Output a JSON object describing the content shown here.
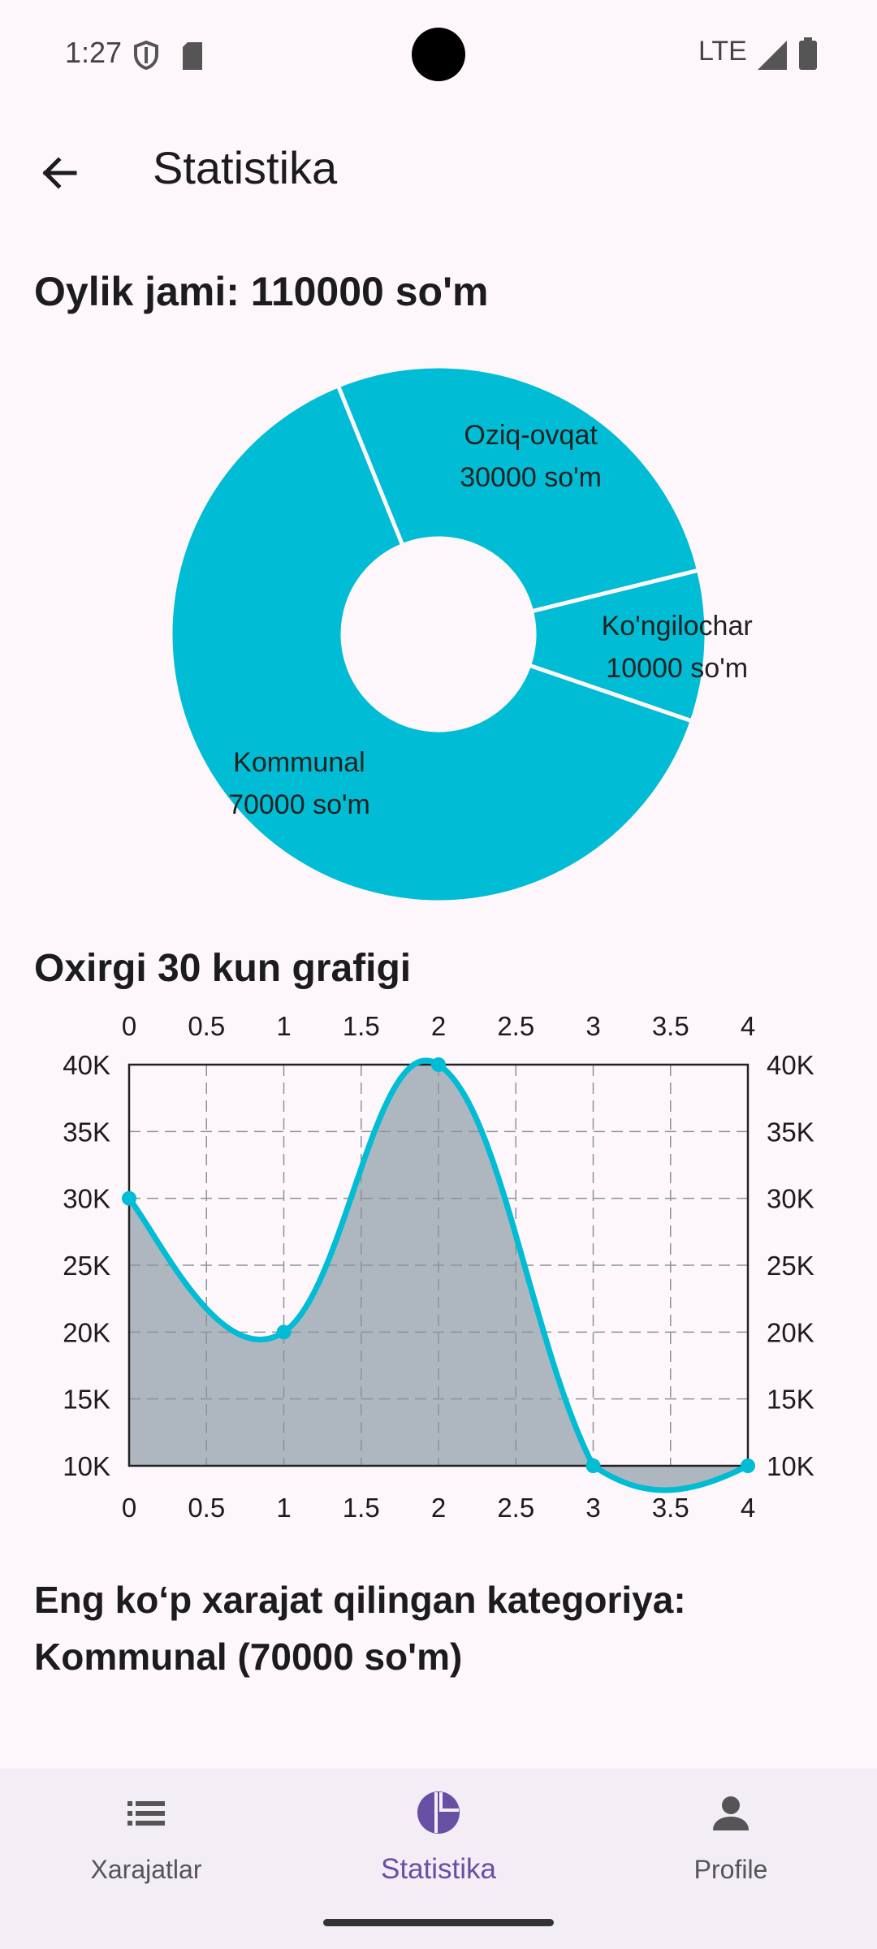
{
  "status_bar": {
    "time": "1:27",
    "network": "LTE"
  },
  "app_bar": {
    "title": "Statistika"
  },
  "summary": {
    "monthly_total": "Oylik jami: 110000 so'm"
  },
  "pie": {
    "slices": [
      {
        "name": "Oziq-ovqat",
        "value": 30000,
        "label_line1": "Oziq-ovqat",
        "label_line2": "30000 so'm"
      },
      {
        "name": "Ko'ngilochar",
        "value": 10000,
        "label_line1": "Ko'ngilochar",
        "label_line2": "10000 so'm"
      },
      {
        "name": "Kommunal",
        "value": 70000,
        "label_line1": "Kommunal",
        "label_line2": "70000 so'm"
      }
    ],
    "color": "#00BCD4"
  },
  "line_section": {
    "title": "Oxirgi 30 kun grafigi"
  },
  "chart_data": {
    "type": "area",
    "x": [
      0,
      1,
      2,
      3,
      4
    ],
    "series": [
      {
        "values": [
          30000,
          20000,
          40000,
          10000,
          10000
        ]
      }
    ],
    "x_ticks": [
      "0",
      "0.5",
      "1",
      "1.5",
      "2",
      "2.5",
      "3",
      "3.5",
      "4"
    ],
    "y_ticks": [
      "10K",
      "15K",
      "20K",
      "25K",
      "30K",
      "35K",
      "40K"
    ],
    "xlim": [
      0,
      4
    ],
    "ylim": [
      10000,
      40000
    ],
    "grid": true,
    "line_color": "#00BCD4",
    "fill_color": "#AEB7C0"
  },
  "top_category": {
    "line1": "Eng ko‘p xarajat qilingan kategoriya:",
    "line2": "Kommunal (70000 so'm)"
  },
  "bottom_nav": {
    "items": [
      {
        "label": "Xarajatlar",
        "icon": "list-icon"
      },
      {
        "label": "Statistika",
        "icon": "pie-chart-icon",
        "active": true
      },
      {
        "label": "Profile",
        "icon": "person-icon"
      }
    ],
    "active_color": "#6750A4"
  }
}
